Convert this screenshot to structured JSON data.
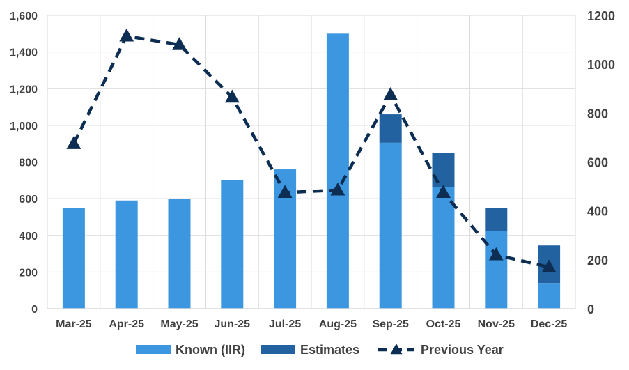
{
  "chart_data": {
    "type": "bar",
    "categories": [
      "Mar-25",
      "Apr-25",
      "May-25",
      "Jun-25",
      "Jul-25",
      "Aug-25",
      "Sep-25",
      "Oct-25",
      "Nov-25",
      "Dec-25"
    ],
    "series": [
      {
        "name": "Known (IIR)",
        "type": "bar",
        "axis": "left",
        "stack": "main",
        "color": "#3D97E0",
        "values": [
          550,
          590,
          600,
          700,
          760,
          1500,
          905,
          665,
          425,
          140
        ]
      },
      {
        "name": "Estimates",
        "type": "bar",
        "axis": "left",
        "stack": "main",
        "color": "#2262A0",
        "values": [
          0,
          0,
          0,
          0,
          0,
          0,
          155,
          185,
          125,
          205
        ]
      },
      {
        "name": "Previous Year",
        "type": "line",
        "axis": "right",
        "color": "#0D2E52",
        "dash": "dashed",
        "marker": "triangle",
        "values": [
          675,
          1115,
          1080,
          865,
          475,
          485,
          875,
          475,
          220,
          170
        ]
      }
    ],
    "y_left": {
      "min": 0,
      "max": 1600,
      "step": 200,
      "tick_labels": [
        "0",
        "200",
        "400",
        "600",
        "800",
        "1,000",
        "1,200",
        "1,400",
        "1,600"
      ]
    },
    "y_right": {
      "min": 0,
      "max": 1200,
      "step": 200,
      "tick_labels": [
        "0",
        "200",
        "400",
        "600",
        "800",
        "1000",
        "1200"
      ]
    },
    "grid": true,
    "legend": {
      "placement": "bottom",
      "entries": [
        {
          "label": "Known (IIR)",
          "symbol": "bar",
          "color": "#3D97E0"
        },
        {
          "label": "Estimates",
          "symbol": "bar",
          "color": "#2262A0"
        },
        {
          "label": "Previous Year",
          "symbol": "dashed-line-triangle",
          "color": "#0D2E52"
        }
      ]
    },
    "colors": {
      "grid": "#D9D9D9",
      "text": "#404040"
    }
  }
}
